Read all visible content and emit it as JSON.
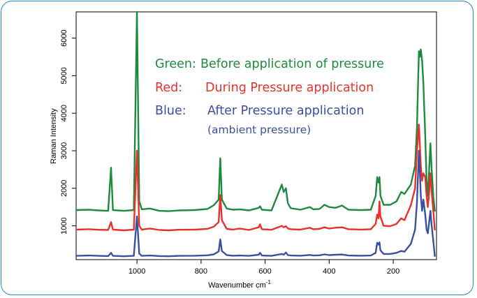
{
  "chart_data": {
    "type": "line",
    "title": "",
    "xlabel_main": "Wavenumber cm",
    "xlabel_sup": "-1",
    "ylabel": "Raman Intensity",
    "xlim": [
      1190,
      65
    ],
    "ylim": [
      100,
      6700
    ],
    "x_ticks": [
      1000,
      800,
      600,
      400,
      200
    ],
    "y_ticks": [
      1000,
      2000,
      3000,
      4000,
      5000,
      6000
    ],
    "grid": false,
    "legend_lines": [
      {
        "label": "Green:",
        "text": "Before application of pressure",
        "color": "#1e8a3e"
      },
      {
        "label": "Red:",
        "text": "During Pressure application",
        "color": "#e8312b"
      },
      {
        "label": "Blue:",
        "text": "After Pressure application",
        "color": "#3a4fa0"
      }
    ],
    "legend_extra": "(ambient pressure)",
    "series": [
      {
        "color": "#1e8a3e",
        "baseline": 1380,
        "points": [
          [
            1190,
            1420
          ],
          [
            1150,
            1430
          ],
          [
            1120,
            1410
          ],
          [
            1090,
            1400
          ],
          [
            1081,
            2550
          ],
          [
            1075,
            1420
          ],
          [
            1040,
            1400
          ],
          [
            1010,
            1420
          ],
          [
            1000,
            6700
          ],
          [
            993,
            1650
          ],
          [
            985,
            1440
          ],
          [
            960,
            1460
          ],
          [
            930,
            1400
          ],
          [
            900,
            1390
          ],
          [
            870,
            1410
          ],
          [
            820,
            1420
          ],
          [
            780,
            1450
          ],
          [
            760,
            1550
          ],
          [
            745,
            1700
          ],
          [
            740,
            2800
          ],
          [
            735,
            1700
          ],
          [
            720,
            1460
          ],
          [
            700,
            1430
          ],
          [
            680,
            1440
          ],
          [
            650,
            1410
          ],
          [
            620,
            1480
          ],
          [
            616,
            1520
          ],
          [
            610,
            1430
          ],
          [
            580,
            1410
          ],
          [
            548,
            2100
          ],
          [
            542,
            1900
          ],
          [
            535,
            2000
          ],
          [
            529,
            1600
          ],
          [
            520,
            1470
          ],
          [
            490,
            1430
          ],
          [
            460,
            1500
          ],
          [
            450,
            1440
          ],
          [
            430,
            1450
          ],
          [
            415,
            1560
          ],
          [
            400,
            1500
          ],
          [
            380,
            1480
          ],
          [
            360,
            1540
          ],
          [
            340,
            1430
          ],
          [
            300,
            1420
          ],
          [
            270,
            1430
          ],
          [
            255,
            1800
          ],
          [
            250,
            2300
          ],
          [
            246,
            2150
          ],
          [
            243,
            2300
          ],
          [
            240,
            1800
          ],
          [
            230,
            1560
          ],
          [
            210,
            1560
          ],
          [
            190,
            1650
          ],
          [
            175,
            1900
          ],
          [
            165,
            1850
          ],
          [
            145,
            2100
          ],
          [
            132,
            2600
          ],
          [
            126,
            3600
          ],
          [
            120,
            5650
          ],
          [
            117,
            5500
          ],
          [
            114,
            5700
          ],
          [
            110,
            5400
          ],
          [
            106,
            4800
          ],
          [
            100,
            3400
          ],
          [
            96,
            2200
          ],
          [
            92,
            1800
          ],
          [
            88,
            2500
          ],
          [
            84,
            3200
          ],
          [
            80,
            2500
          ],
          [
            75,
            1800
          ],
          [
            70,
            1380
          ]
        ]
      },
      {
        "color": "#e8312b",
        "baseline": 880,
        "points": [
          [
            1190,
            900
          ],
          [
            1150,
            910
          ],
          [
            1120,
            895
          ],
          [
            1090,
            890
          ],
          [
            1081,
            1100
          ],
          [
            1075,
            900
          ],
          [
            1040,
            880
          ],
          [
            1010,
            900
          ],
          [
            1000,
            3000
          ],
          [
            993,
            1000
          ],
          [
            985,
            900
          ],
          [
            960,
            930
          ],
          [
            930,
            890
          ],
          [
            900,
            880
          ],
          [
            870,
            895
          ],
          [
            820,
            900
          ],
          [
            780,
            920
          ],
          [
            760,
            980
          ],
          [
            745,
            1100
          ],
          [
            740,
            1820
          ],
          [
            735,
            1150
          ],
          [
            720,
            920
          ],
          [
            700,
            900
          ],
          [
            680,
            930
          ],
          [
            650,
            890
          ],
          [
            620,
            960
          ],
          [
            616,
            1040
          ],
          [
            610,
            910
          ],
          [
            580,
            895
          ],
          [
            548,
            1000
          ],
          [
            542,
            960
          ],
          [
            535,
            990
          ],
          [
            529,
            930
          ],
          [
            520,
            910
          ],
          [
            490,
            900
          ],
          [
            460,
            950
          ],
          [
            450,
            910
          ],
          [
            430,
            920
          ],
          [
            415,
            960
          ],
          [
            400,
            930
          ],
          [
            380,
            950
          ],
          [
            360,
            960
          ],
          [
            340,
            910
          ],
          [
            300,
            900
          ],
          [
            270,
            910
          ],
          [
            255,
            1050
          ],
          [
            250,
            1300
          ],
          [
            246,
            1200
          ],
          [
            243,
            1650
          ],
          [
            240,
            1250
          ],
          [
            230,
            1000
          ],
          [
            210,
            990
          ],
          [
            190,
            1050
          ],
          [
            175,
            1200
          ],
          [
            165,
            1150
          ],
          [
            145,
            1550
          ],
          [
            132,
            2000
          ],
          [
            126,
            3000
          ],
          [
            120,
            3700
          ],
          [
            117,
            3200
          ],
          [
            114,
            2600
          ],
          [
            110,
            2200
          ],
          [
            106,
            2400
          ],
          [
            100,
            2300
          ],
          [
            96,
            1800
          ],
          [
            92,
            1500
          ],
          [
            88,
            1900
          ],
          [
            84,
            2400
          ],
          [
            80,
            1900
          ],
          [
            75,
            1400
          ],
          [
            70,
            880
          ]
        ]
      },
      {
        "color": "#3a4fa0",
        "baseline": 180,
        "points": [
          [
            1190,
            200
          ],
          [
            1150,
            210
          ],
          [
            1120,
            200
          ],
          [
            1090,
            195
          ],
          [
            1081,
            280
          ],
          [
            1075,
            200
          ],
          [
            1040,
            190
          ],
          [
            1010,
            200
          ],
          [
            1000,
            1250
          ],
          [
            993,
            260
          ],
          [
            985,
            200
          ],
          [
            960,
            210
          ],
          [
            930,
            195
          ],
          [
            900,
            190
          ],
          [
            870,
            200
          ],
          [
            820,
            205
          ],
          [
            780,
            215
          ],
          [
            760,
            240
          ],
          [
            745,
            320
          ],
          [
            740,
            640
          ],
          [
            735,
            330
          ],
          [
            720,
            220
          ],
          [
            700,
            205
          ],
          [
            680,
            210
          ],
          [
            650,
            200
          ],
          [
            620,
            230
          ],
          [
            616,
            280
          ],
          [
            610,
            210
          ],
          [
            580,
            200
          ],
          [
            548,
            250
          ],
          [
            542,
            230
          ],
          [
            535,
            290
          ],
          [
            529,
            220
          ],
          [
            520,
            210
          ],
          [
            490,
            205
          ],
          [
            460,
            225
          ],
          [
            450,
            210
          ],
          [
            430,
            215
          ],
          [
            415,
            240
          ],
          [
            400,
            220
          ],
          [
            380,
            230
          ],
          [
            360,
            235
          ],
          [
            340,
            210
          ],
          [
            300,
            205
          ],
          [
            270,
            210
          ],
          [
            255,
            280
          ],
          [
            250,
            550
          ],
          [
            246,
            500
          ],
          [
            243,
            560
          ],
          [
            240,
            350
          ],
          [
            230,
            250
          ],
          [
            210,
            250
          ],
          [
            190,
            280
          ],
          [
            175,
            330
          ],
          [
            165,
            310
          ],
          [
            145,
            520
          ],
          [
            132,
            900
          ],
          [
            126,
            1600
          ],
          [
            120,
            3000
          ],
          [
            117,
            2500
          ],
          [
            114,
            1800
          ],
          [
            110,
            1400
          ],
          [
            106,
            1700
          ],
          [
            100,
            1300
          ],
          [
            96,
            900
          ],
          [
            92,
            800
          ],
          [
            88,
            1100
          ],
          [
            84,
            1400
          ],
          [
            80,
            1000
          ],
          [
            75,
            600
          ],
          [
            70,
            180
          ]
        ]
      }
    ]
  }
}
